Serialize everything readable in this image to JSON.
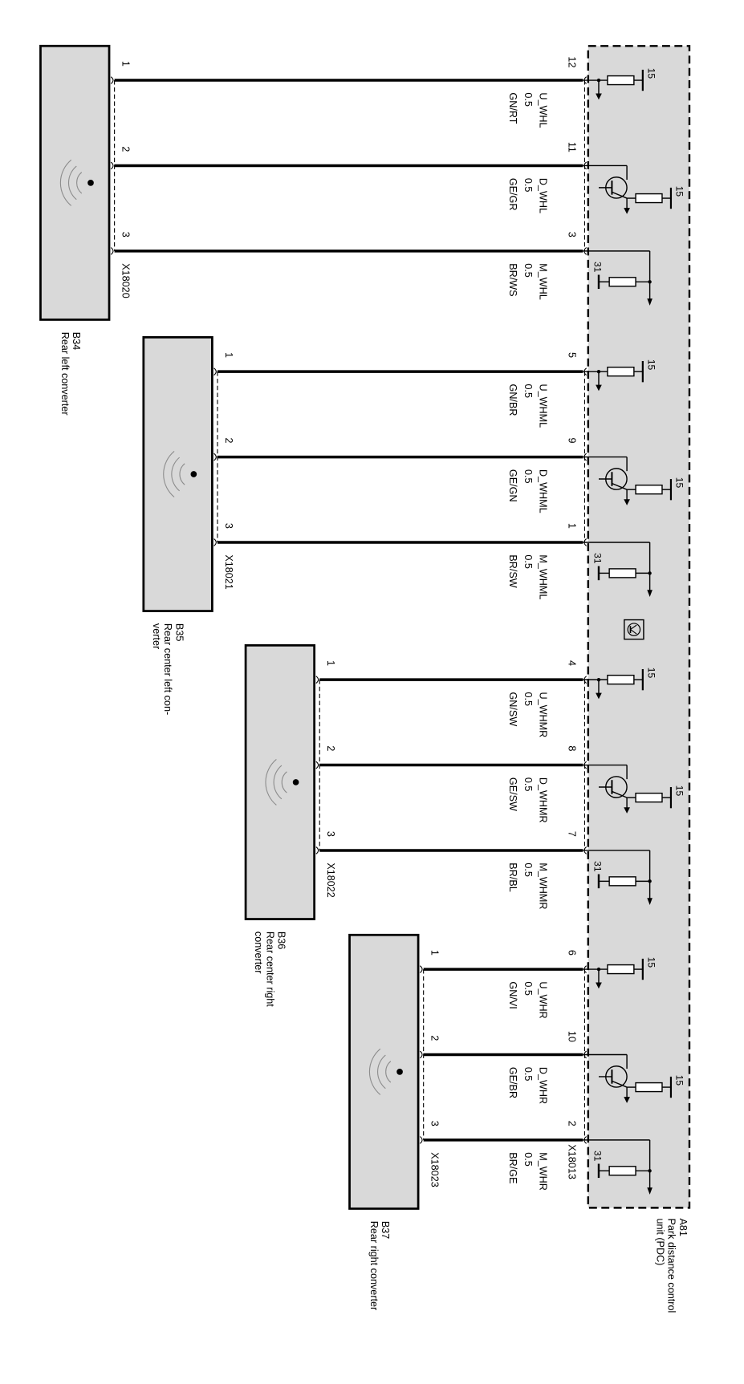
{
  "ecu": {
    "id": "A81",
    "name_lines": [
      "Park distance control",
      "unit (PDC)"
    ],
    "connector": "X18013",
    "supply_label": "15",
    "ground_label": "31"
  },
  "sensors": [
    {
      "id": "B34",
      "name_lines": [
        "Rear left converter"
      ],
      "connector": "X18020",
      "wires": [
        {
          "sensor_pin": "1",
          "ecu_pin": "12",
          "signal": "U_WHL",
          "cross_section": "0.5",
          "color": "GN/RT"
        },
        {
          "sensor_pin": "2",
          "ecu_pin": "11",
          "signal": "D_WHL",
          "cross_section": "0.5",
          "color": "GE/GR"
        },
        {
          "sensor_pin": "3",
          "ecu_pin": "3",
          "signal": "M_WHL",
          "cross_section": "0.5",
          "color": "BR/WS"
        }
      ]
    },
    {
      "id": "B35",
      "name_lines": [
        "Rear center left con-",
        "verter"
      ],
      "connector": "X18021",
      "wires": [
        {
          "sensor_pin": "1",
          "ecu_pin": "5",
          "signal": "U_WHML",
          "cross_section": "0.5",
          "color": "GN/BR"
        },
        {
          "sensor_pin": "2",
          "ecu_pin": "9",
          "signal": "D_WHML",
          "cross_section": "0.5",
          "color": "GE/GN"
        },
        {
          "sensor_pin": "3",
          "ecu_pin": "1",
          "signal": "M_WHML",
          "cross_section": "0.5",
          "color": "BR/SW"
        }
      ]
    },
    {
      "id": "B36",
      "name_lines": [
        "Rear center right",
        "converter"
      ],
      "connector": "X18022",
      "wires": [
        {
          "sensor_pin": "1",
          "ecu_pin": "4",
          "signal": "U_WHMR",
          "cross_section": "0.5",
          "color": "GN/SW"
        },
        {
          "sensor_pin": "2",
          "ecu_pin": "8",
          "signal": "D_WHMR",
          "cross_section": "0.5",
          "color": "GE/SW"
        },
        {
          "sensor_pin": "3",
          "ecu_pin": "7",
          "signal": "M_WHMR",
          "cross_section": "0.5",
          "color": "BR/BL"
        }
      ]
    },
    {
      "id": "B37",
      "name_lines": [
        "Rear right converter"
      ],
      "connector": "X18023",
      "wires": [
        {
          "sensor_pin": "1",
          "ecu_pin": "6",
          "signal": "U_WHR",
          "cross_section": "0.5",
          "color": "GN/VI"
        },
        {
          "sensor_pin": "2",
          "ecu_pin": "10",
          "signal": "D_WHR",
          "cross_section": "0.5",
          "color": "GE/BR"
        },
        {
          "sensor_pin": "3",
          "ecu_pin": "2",
          "signal": "M_WHR",
          "cross_section": "0.5",
          "color": "BR/GE"
        }
      ]
    }
  ],
  "colors": {
    "component_fill": "#d9d9d9",
    "line": "#000000",
    "wave": "#8c8c8c"
  }
}
